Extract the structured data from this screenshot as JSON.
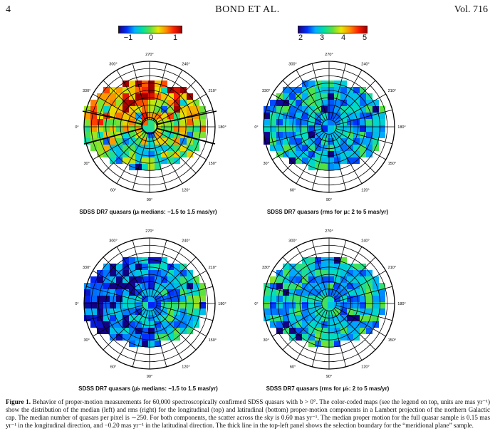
{
  "header": {
    "page_number": "4",
    "running_title": "BOND ET AL.",
    "volume": "Vol. 716"
  },
  "colorbars": [
    {
      "ticks": [
        "−1",
        "0",
        "1"
      ]
    },
    {
      "ticks": [
        "2",
        "3",
        "4",
        "5"
      ]
    }
  ],
  "panel_angle_labels": [
    "270°",
    "240°",
    "210°",
    "180°",
    "150°",
    "120°",
    "90°",
    "60°",
    "30°",
    "0°",
    "330°",
    "300°"
  ],
  "panels": [
    {
      "id": "top-left",
      "title": "SDSS DR7 quasars (μₗ medians: −1.5 to 1.5 mas/yr)",
      "colormap": "median",
      "center_bias": 0.15,
      "has_boundary": true
    },
    {
      "id": "top-right",
      "title": "SDSS DR7 quasars (rms for μₗ: 2 to 5 mas/yr)",
      "colormap": "rms",
      "center_bias": -0.45,
      "has_boundary": false
    },
    {
      "id": "bottom-left",
      "title": "SDSS DR7 quasars (μ♭ medians: −1.5 to 1.5 mas/yr)",
      "colormap": "median",
      "center_bias": -0.25,
      "has_boundary": false
    },
    {
      "id": "bottom-right",
      "title": "SDSS DR7 quasars (rms for μ♭: 2 to 5 mas/yr)",
      "colormap": "rms",
      "center_bias": -0.3,
      "has_boundary": false
    }
  ],
  "caption": {
    "lead": "Figure 1.",
    "text": " Behavior of proper-motion measurements for 60,000 spectroscopically confirmed SDSS quasars with b > 0°. The color-coded maps (see the legend on top, units are mas yr⁻¹) show the distribution of the median (left) and rms (right) for the longitudinal (top) and latitudinal (bottom) proper-motion components in a Lambert projection of the northern Galactic cap. The median number of quasars per pixel is ∼250. For both components, the scatter across the sky is 0.60 mas yr⁻¹. The median proper motion for the full quasar sample is 0.15 mas yr⁻¹ in the longitudinal direction, and −0.20 mas yr⁻¹ in the latitudinal direction. The thick line in the top-left panel shows the selection boundary for the “meridional plane” sample."
  }
}
